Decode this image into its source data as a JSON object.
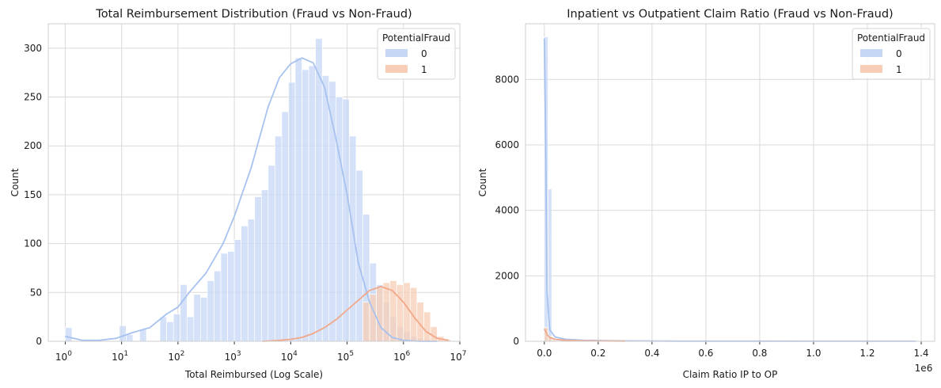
{
  "chart_data": [
    {
      "type": "histogram",
      "title": "Total Reimbursement Distribution (Fraud vs Non-Fraud)",
      "xlabel": "Total Reimbursed (Log Scale)",
      "ylabel": "Count",
      "x_scale": "log",
      "xlim": [
        0.5,
        10000000
      ],
      "ylim": [
        0,
        325
      ],
      "x_ticks": [
        {
          "v": 1,
          "base": "10",
          "exp": "0"
        },
        {
          "v": 10,
          "base": "10",
          "exp": "1"
        },
        {
          "v": 100,
          "base": "10",
          "exp": "2"
        },
        {
          "v": 1000,
          "base": "10",
          "exp": "3"
        },
        {
          "v": 10000,
          "base": "10",
          "exp": "4"
        },
        {
          "v": 100000,
          "base": "10",
          "exp": "5"
        },
        {
          "v": 1000000,
          "base": "10",
          "exp": "6"
        },
        {
          "v": 10000000,
          "base": "10",
          "exp": "7"
        }
      ],
      "y_ticks": [
        0,
        50,
        100,
        150,
        200,
        250,
        300
      ],
      "grid": true,
      "legend": {
        "title": "PotentialFraud",
        "position": "top-right"
      },
      "bin_edges_log10": [
        0,
        0.12,
        0.24,
        0.36,
        0.48,
        0.6,
        0.72,
        0.84,
        0.96,
        1.08,
        1.2,
        1.32,
        1.44,
        1.56,
        1.68,
        1.8,
        1.92,
        2.04,
        2.16,
        2.28,
        2.4,
        2.52,
        2.64,
        2.76,
        2.88,
        3.0,
        3.12,
        3.24,
        3.36,
        3.48,
        3.6,
        3.72,
        3.84,
        3.96,
        4.08,
        4.2,
        4.32,
        4.44,
        4.56,
        4.68,
        4.8,
        4.92,
        5.04,
        5.16,
        5.28,
        5.4,
        5.52,
        5.64,
        5.76,
        5.88,
        6.0,
        6.12,
        6.24,
        6.36,
        6.48,
        6.6,
        6.72,
        6.84
      ],
      "series": [
        {
          "name": "0",
          "color": "#c5d7f5",
          "kde_color": "#a8c2f0",
          "counts": [
            14,
            0,
            0,
            0,
            0,
            0,
            0,
            0,
            16,
            7,
            0,
            12,
            0,
            0,
            25,
            20,
            28,
            58,
            25,
            48,
            45,
            62,
            72,
            90,
            92,
            104,
            118,
            125,
            148,
            155,
            180,
            210,
            235,
            265,
            290,
            278,
            282,
            310,
            272,
            266,
            250,
            248,
            210,
            175,
            130,
            80,
            58,
            40,
            25,
            15,
            10,
            5,
            3,
            2,
            0,
            0,
            0
          ],
          "kde_log10": [
            0,
            0.3,
            0.6,
            0.9,
            1.2,
            1.5,
            1.8,
            2.0,
            2.2,
            2.5,
            2.8,
            3.0,
            3.3,
            3.6,
            3.8,
            4.0,
            4.2,
            4.4,
            4.6,
            4.8,
            5.0,
            5.2,
            5.4,
            5.6,
            5.8,
            6.0,
            6.3,
            6.6
          ],
          "kde_values": [
            5,
            1,
            1,
            3,
            9,
            14,
            28,
            35,
            50,
            70,
            100,
            128,
            178,
            240,
            270,
            284,
            290,
            285,
            260,
            208,
            150,
            80,
            40,
            14,
            4,
            1,
            0,
            0
          ]
        },
        {
          "name": "1",
          "color": "#f7cdb6",
          "kde_color": "#f2a888",
          "counts": [
            0,
            0,
            0,
            0,
            0,
            0,
            0,
            0,
            0,
            0,
            0,
            0,
            0,
            0,
            0,
            0,
            0,
            0,
            0,
            0,
            0,
            0,
            0,
            0,
            0,
            0,
            0,
            0,
            0,
            0,
            0,
            0,
            0,
            0,
            0,
            0,
            0,
            0,
            0,
            0,
            0,
            0,
            0,
            0,
            40,
            48,
            55,
            60,
            62,
            58,
            60,
            55,
            40,
            30,
            15,
            5,
            2
          ],
          "kde_log10": [
            3.5,
            3.8,
            4.0,
            4.2,
            4.4,
            4.6,
            4.8,
            5.0,
            5.2,
            5.4,
            5.6,
            5.8,
            6.0,
            6.2,
            6.4,
            6.6,
            6.8
          ],
          "kde_values": [
            0,
            1,
            2,
            4,
            8,
            14,
            22,
            32,
            42,
            52,
            56,
            52,
            40,
            24,
            10,
            3,
            1
          ]
        }
      ]
    },
    {
      "type": "histogram",
      "title": "Inpatient vs Outpatient Claim Ratio (Fraud vs Non-Fraud)",
      "xlabel": "Claim Ratio IP to OP",
      "ylabel": "Count",
      "x_offset_text": "1e6",
      "xlim": [
        -0.07,
        1.45
      ],
      "ylim": [
        0,
        9700
      ],
      "x_ticks": [
        {
          "v": 0.0,
          "label": "0.0"
        },
        {
          "v": 0.2,
          "label": "0.2"
        },
        {
          "v": 0.4,
          "label": "0.4"
        },
        {
          "v": 0.6,
          "label": "0.6"
        },
        {
          "v": 0.8,
          "label": "0.8"
        },
        {
          "v": 1.0,
          "label": "1.0"
        },
        {
          "v": 1.2,
          "label": "1.2"
        },
        {
          "v": 1.4,
          "label": "1.4"
        }
      ],
      "y_ticks": [
        0,
        2000,
        4000,
        6000,
        8000
      ],
      "grid": true,
      "legend": {
        "title": "PotentialFraud",
        "position": "top-right"
      },
      "bin_width": 0.0138,
      "series": [
        {
          "name": "0",
          "color": "#c5d7f5",
          "kde_color": "#a8c2f0",
          "counts": [
            9300,
            4650,
            80,
            50,
            30,
            20,
            15,
            10,
            8,
            6,
            5,
            4,
            3,
            2
          ],
          "kde_x": [
            0.0,
            0.005,
            0.01,
            0.02,
            0.04,
            0.08,
            0.15,
            0.3,
            0.5,
            0.8,
            1.1,
            1.38
          ],
          "kde_values": [
            9250,
            6000,
            1500,
            350,
            130,
            60,
            30,
            12,
            6,
            4,
            3,
            2
          ]
        },
        {
          "name": "1",
          "color": "#f7cdb6",
          "kde_color": "#f2a888",
          "counts": [
            420,
            150,
            40,
            20,
            10,
            6,
            4,
            3
          ],
          "kde_x": [
            0.0,
            0.005,
            0.01,
            0.02,
            0.04,
            0.08,
            0.15,
            0.3
          ],
          "kde_values": [
            380,
            300,
            200,
            120,
            60,
            30,
            15,
            5
          ]
        }
      ]
    }
  ]
}
